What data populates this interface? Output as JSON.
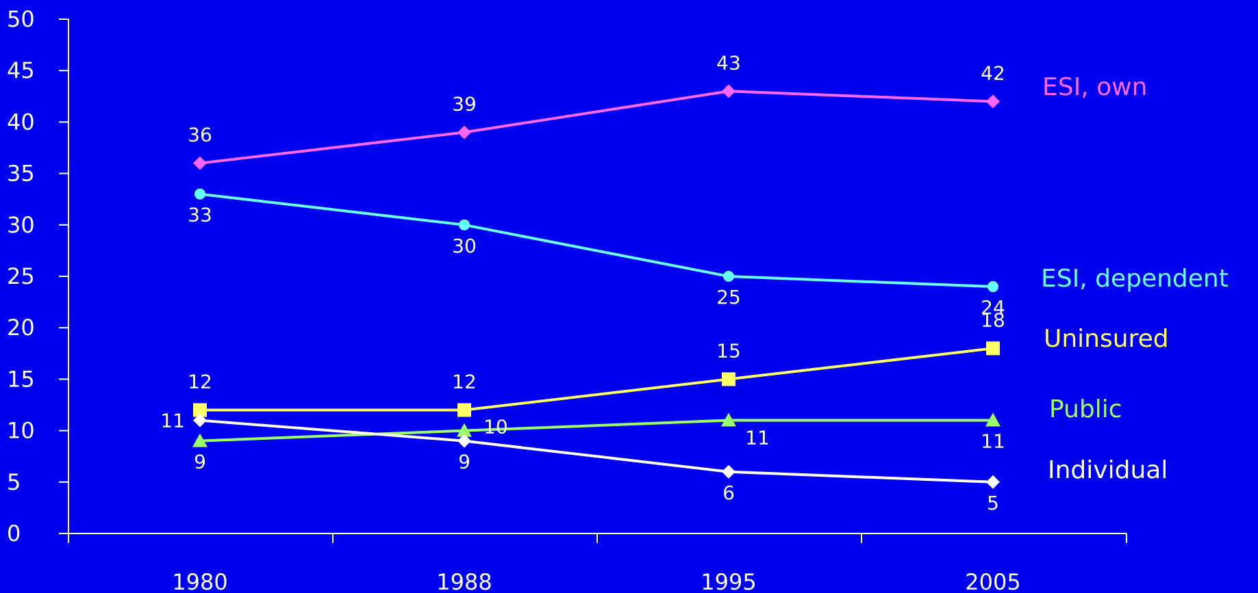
{
  "chart_data": {
    "type": "line",
    "title": "",
    "xlabel": "",
    "ylabel": "",
    "categories": [
      "1980",
      "1988",
      "1995",
      "2005"
    ],
    "ylim": [
      0,
      50
    ],
    "yticks": [
      0,
      5,
      10,
      15,
      20,
      25,
      30,
      35,
      40,
      45,
      50
    ],
    "grid": false,
    "legend": "inline-right",
    "background": "#0000f0",
    "axis_color": "#ffffff",
    "series": [
      {
        "name": "ESI, own",
        "values": [
          36,
          39,
          43,
          42
        ],
        "color": "#ff66ff",
        "marker": "diamond",
        "labels": [
          "36",
          "39",
          "43",
          "42"
        ],
        "label_pos": [
          "above",
          "above",
          "above",
          "above"
        ]
      },
      {
        "name": "ESI, dependent",
        "values": [
          33,
          30,
          25,
          24
        ],
        "color": "#66ffff",
        "marker": "circle",
        "labels": [
          "33",
          "30",
          "25",
          "24"
        ],
        "label_pos": [
          "below",
          "below",
          "below",
          "below"
        ]
      },
      {
        "name": "Uninsured",
        "values": [
          12,
          12,
          15,
          18
        ],
        "color": "#ffff66",
        "marker": "square",
        "labels": [
          "12",
          "12",
          "15",
          "18"
        ],
        "label_pos": [
          "above",
          "above",
          "above",
          "above"
        ]
      },
      {
        "name": "Public",
        "values": [
          9,
          10,
          11,
          11
        ],
        "color": "#99ff66",
        "marker": "triangle",
        "labels": [
          "9",
          "10",
          "11",
          "11"
        ],
        "label_pos": [
          "below",
          "right",
          "belowright",
          "below"
        ]
      },
      {
        "name": "Individual",
        "values": [
          11,
          9,
          6,
          5
        ],
        "color": "#ffffff",
        "marker": "diamond",
        "labels": [
          "11",
          "9",
          "6",
          "5"
        ],
        "label_pos": [
          "left",
          "below",
          "below",
          "below"
        ]
      }
    ]
  }
}
